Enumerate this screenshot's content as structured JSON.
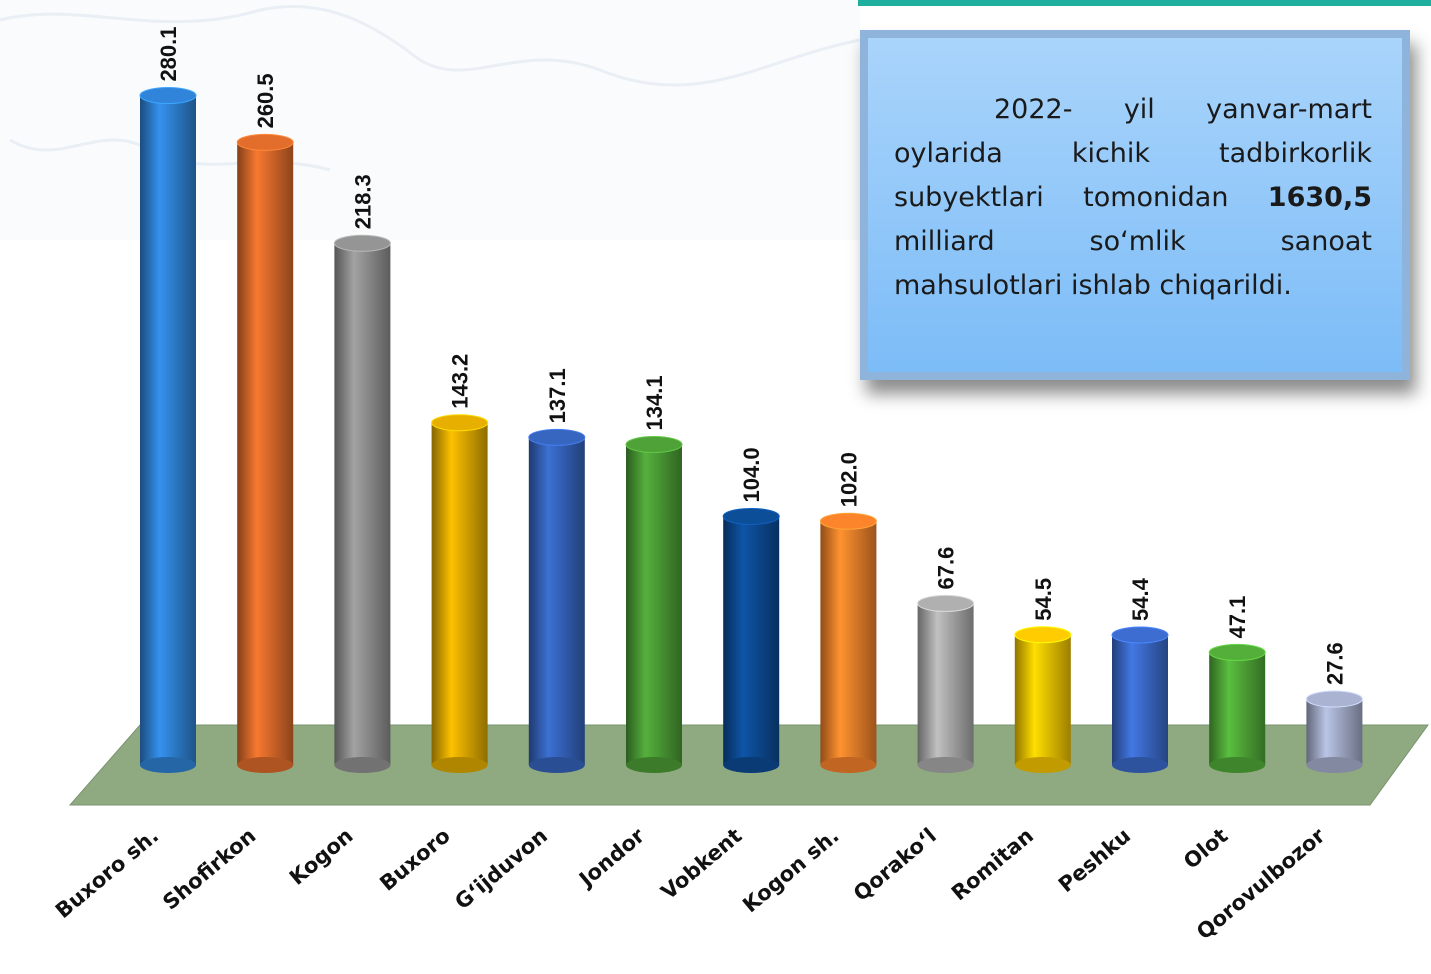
{
  "chart_data": {
    "type": "bar",
    "categories": [
      "Buxoro sh.",
      "Shofirkon",
      "Kogon",
      "Buxoro",
      "G‘ijduvon",
      "Jondor",
      "Vobkent",
      "Kogon sh.",
      "Qorako‘l",
      "Romitan",
      "Peshku",
      "Olot",
      "Qorovulbozor"
    ],
    "values": [
      280.1,
      260.5,
      218.3,
      143.2,
      137.1,
      134.1,
      104.0,
      102.0,
      67.6,
      54.5,
      54.4,
      47.1,
      27.6
    ],
    "value_labels": [
      "280.1",
      "260.5",
      "218.3",
      "143.2",
      "137.1",
      "134.1",
      "104.0",
      "102.0",
      "67.6",
      "54.5",
      "54.4",
      "47.1",
      "27.6"
    ],
    "colors": [
      "#2e7fd0",
      "#d8692a",
      "#8e8e8e",
      "#dca800",
      "#3461b8",
      "#4a9a35",
      "#0c4a92",
      "#f07f2a",
      "#a8a8a8",
      "#f2c200",
      "#3a68c6",
      "#4fa637",
      "#a2abc8"
    ],
    "ylim": [
      0,
      300
    ],
    "annotation": [
      "2022- yil yanvar-mart oylarida kichik tadbirkorlik subyektlari tomonidan",
      "1630,5",
      "milliard so‘mlik sanoat mahsulotlari ishlab chiqarildi."
    ]
  }
}
